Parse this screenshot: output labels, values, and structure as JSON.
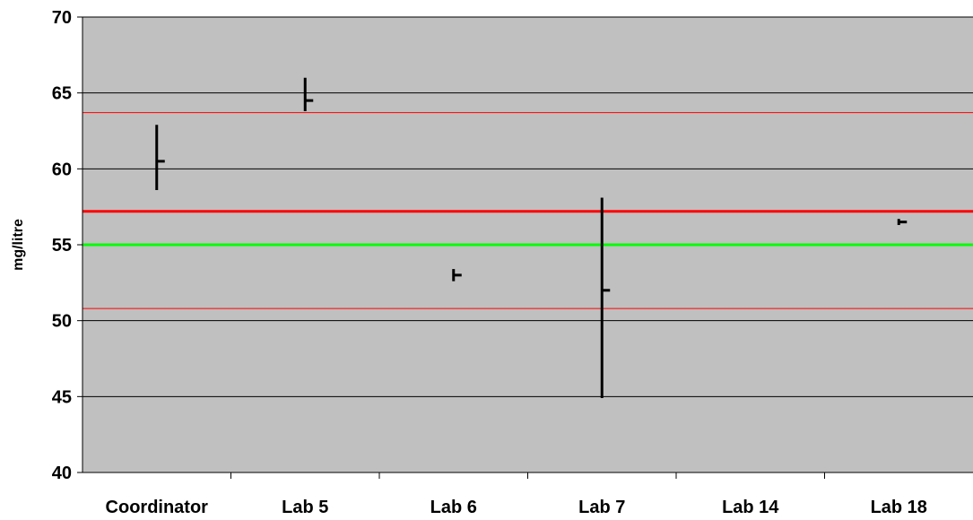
{
  "chart_data": {
    "type": "scatter",
    "title": "",
    "xlabel": "",
    "ylabel": "mg/litre",
    "ylim": [
      40,
      70
    ],
    "yticks": [
      40,
      45,
      50,
      55,
      60,
      65,
      70
    ],
    "grid": true,
    "legend": "none",
    "categories": [
      "Coordinator",
      "Lab 5",
      "Lab 6",
      "Lab 7",
      "Lab 14",
      "Lab 18"
    ],
    "series": [
      {
        "type": "high-low-close",
        "points": [
          {
            "category": "Coordinator",
            "high": 62.9,
            "low": 58.6,
            "value": 60.5
          },
          {
            "category": "Lab 5",
            "high": 66.0,
            "low": 63.8,
            "value": 64.5
          },
          {
            "category": "Lab 6",
            "high": 53.4,
            "low": 52.6,
            "value": 53.0
          },
          {
            "category": "Lab 7",
            "high": 58.1,
            "low": 44.9,
            "value": 52.0
          },
          {
            "category": "Lab 18",
            "high": 56.7,
            "low": 56.3,
            "value": 56.5
          }
        ]
      }
    ],
    "reference_lines": [
      {
        "value": 63.7,
        "color": "#ff0000",
        "style": "thin"
      },
      {
        "value": 57.2,
        "color": "#ff0000",
        "style": "thick"
      },
      {
        "value": 55.0,
        "color": "#00ff00",
        "style": "thick"
      },
      {
        "value": 50.8,
        "color": "#ff0000",
        "style": "thin"
      }
    ],
    "colors": {
      "plot_background": "#c0c0c0",
      "gridline": "#000000",
      "marker": "#000000"
    }
  }
}
